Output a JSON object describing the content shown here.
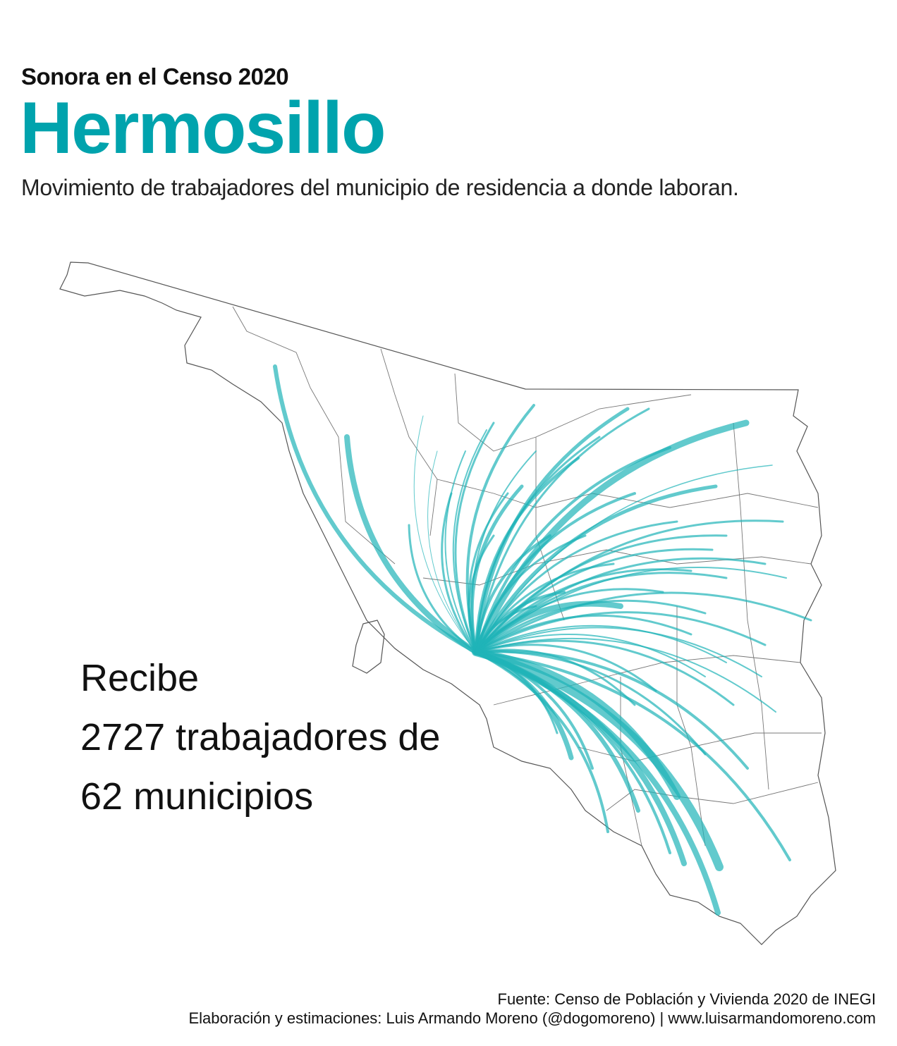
{
  "header": {
    "kicker": "Sonora en el Censo 2020",
    "title": "Hermosillo",
    "subtitle": "Movimiento de trabajadores del municipio de residencia a donde laboran."
  },
  "callout": {
    "line1": "Recibe",
    "line2": "2727 trabajadores de",
    "line3": "62 municipios"
  },
  "map": {
    "destination": "Hermosillo",
    "origin_count": 62,
    "workers": 2727,
    "flow_color": "#1fb3b8",
    "border_color": "#555555"
  },
  "footer": {
    "source": "Fuente: Censo de Población y Vivienda 2020 de INEGI",
    "credit": "Elaboración y estimaciones: Luis Armando Moreno (@dogomoreno) | www.luisarmandomoreno.com"
  }
}
